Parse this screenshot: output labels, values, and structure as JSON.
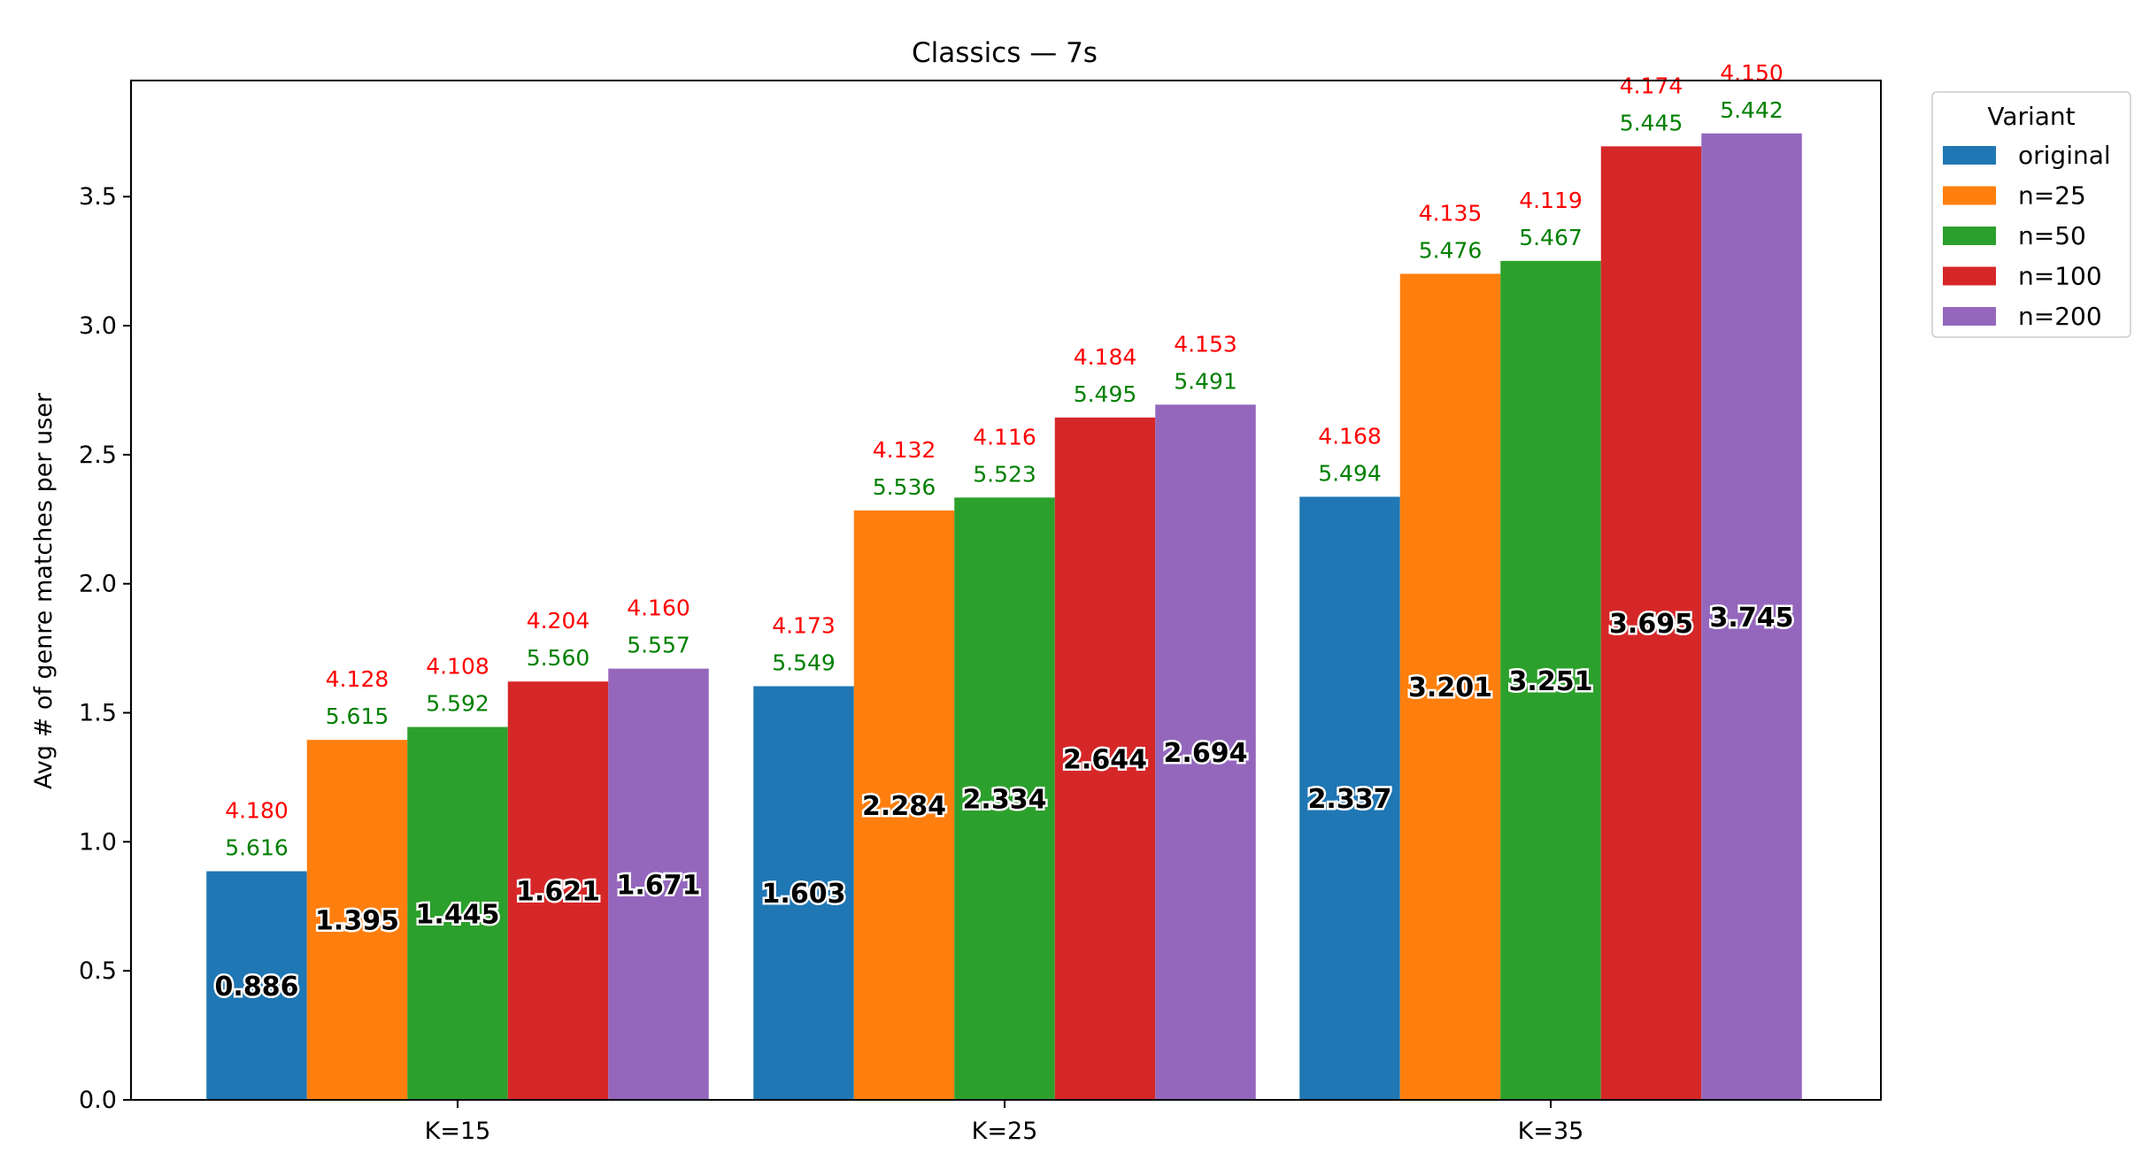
{
  "chart_data": {
    "type": "bar",
    "title": "Classics — 7s",
    "xlabel": "",
    "ylabel": "Avg # of genre matches per user",
    "ylim": [
      0,
      3.95
    ],
    "yticks": [
      "0.0",
      "0.5",
      "1.0",
      "1.5",
      "2.0",
      "2.5",
      "3.0",
      "3.5"
    ],
    "grid": false,
    "categories": [
      "K=15",
      "K=25",
      "K=35"
    ],
    "legend": {
      "title": "Variant",
      "placement": "top-right, outside plot"
    },
    "series": [
      {
        "name": "original",
        "color": "#1f77b4",
        "values": [
          0.886,
          1.603,
          2.337
        ],
        "value_labels": [
          "0.886",
          "1.603",
          "2.337"
        ],
        "green_labels": [
          "5.616",
          "5.549",
          "5.494"
        ],
        "red_labels": [
          "4.180",
          "4.173",
          "4.168"
        ]
      },
      {
        "name": "n=25",
        "color": "#ff7f0e",
        "values": [
          1.395,
          2.284,
          3.201
        ],
        "value_labels": [
          "1.395",
          "2.284",
          "3.201"
        ],
        "green_labels": [
          "5.615",
          "5.536",
          "5.476"
        ],
        "red_labels": [
          "4.128",
          "4.132",
          "4.135"
        ]
      },
      {
        "name": "n=50",
        "color": "#2ca02c",
        "values": [
          1.445,
          2.334,
          3.251
        ],
        "value_labels": [
          "1.445",
          "2.334",
          "3.251"
        ],
        "green_labels": [
          "5.592",
          "5.523",
          "5.467"
        ],
        "red_labels": [
          "4.108",
          "4.116",
          "4.119"
        ]
      },
      {
        "name": "n=100",
        "color": "#d62728",
        "values": [
          1.621,
          2.644,
          3.695
        ],
        "value_labels": [
          "1.621",
          "2.644",
          "3.695"
        ],
        "green_labels": [
          "5.560",
          "5.495",
          "5.445"
        ],
        "red_labels": [
          "4.204",
          "4.184",
          "4.174"
        ]
      },
      {
        "name": "n=200",
        "color": "#9467bd",
        "values": [
          1.671,
          2.694,
          3.745
        ],
        "value_labels": [
          "1.671",
          "2.694",
          "3.745"
        ],
        "green_labels": [
          "5.557",
          "5.491",
          "5.442"
        ],
        "red_labels": [
          "4.160",
          "4.153",
          "4.150"
        ]
      }
    ],
    "annotation_colors": {
      "green": "#008000",
      "red": "#ff0000"
    }
  }
}
